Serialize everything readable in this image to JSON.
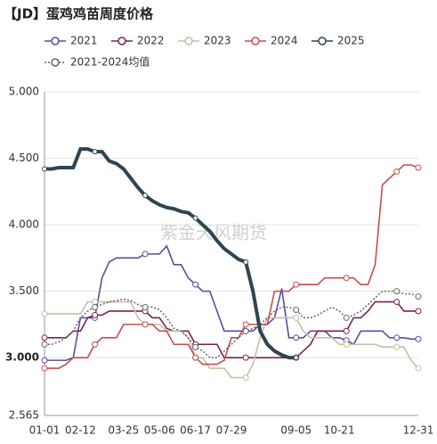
{
  "chart_data": {
    "type": "line",
    "title": "【JD】蛋鸡鸡苗周度价格",
    "watermark": "紫金天风期货",
    "categories": [
      "01-01",
      null,
      null,
      null,
      null,
      "02-12",
      null,
      null,
      null,
      null,
      null,
      "03-25",
      null,
      null,
      null,
      null,
      "05-06",
      null,
      null,
      null,
      null,
      "06-17",
      null,
      null,
      null,
      null,
      "07-29",
      null,
      null,
      null,
      null,
      null,
      null,
      null,
      null,
      "09-05",
      null,
      null,
      null,
      null,
      null,
      "10-21",
      null,
      null,
      null,
      null,
      null,
      null,
      null,
      null,
      null,
      null,
      "12-31"
    ],
    "ylim": [
      2.565,
      5.0
    ],
    "yticks": [
      2.565,
      {
        "value": 3,
        "label": "3.000"
      },
      {
        "value": 3.5,
        "label": "3.500"
      },
      {
        "value": 4,
        "label": "4.000"
      },
      {
        "value": 4.5,
        "label": "4.500"
      },
      {
        "value": 5,
        "label": "5.000"
      }
    ],
    "grid": true,
    "series": [
      {
        "name": "2021",
        "color": "#5a4e9e",
        "values": [
          2.98,
          2.98,
          2.98,
          2.98,
          3.0,
          3.3,
          3.3,
          3.3,
          3.6,
          3.72,
          3.75,
          3.75,
          3.75,
          3.75,
          3.78,
          3.78,
          3.78,
          3.84,
          3.7,
          3.7,
          3.6,
          3.55,
          3.5,
          3.5,
          3.35,
          3.2,
          3.2,
          3.2,
          3.2,
          3.2,
          3.25,
          3.25,
          3.3,
          3.52,
          3.15,
          3.15,
          3.15,
          3.2,
          3.2,
          3.2,
          3.15,
          3.15,
          3.13,
          3.1,
          3.2,
          3.2,
          3.2,
          3.2,
          3.15,
          3.15,
          3.15,
          3.14,
          3.14
        ]
      },
      {
        "name": "2022",
        "color": "#7b2150",
        "values": [
          3.15,
          3.15,
          3.15,
          3.15,
          3.2,
          3.2,
          3.3,
          3.32,
          3.32,
          3.35,
          3.35,
          3.35,
          3.35,
          3.35,
          3.35,
          3.3,
          3.3,
          3.22,
          3.2,
          3.2,
          3.2,
          3.1,
          3.1,
          3.1,
          3.1,
          3.0,
          3.0,
          3.0,
          3.0,
          3.0,
          3.0,
          3.0,
          3.0,
          3.0,
          3.0,
          3.0,
          3.05,
          3.1,
          3.2,
          3.2,
          3.2,
          3.2,
          3.2,
          3.3,
          3.3,
          3.35,
          3.42,
          3.42,
          3.42,
          3.42,
          3.35,
          3.35,
          3.35
        ]
      },
      {
        "name": "2023",
        "color": "#c7bfa6",
        "values": [
          3.33,
          3.33,
          3.33,
          3.33,
          3.33,
          3.33,
          3.42,
          3.42,
          3.42,
          3.42,
          3.42,
          3.42,
          3.42,
          3.3,
          3.25,
          3.25,
          3.25,
          3.2,
          3.2,
          3.2,
          3.15,
          3.0,
          3.0,
          2.92,
          2.92,
          2.92,
          2.85,
          2.85,
          2.85,
          2.95,
          3.15,
          3.3,
          3.3,
          3.3,
          3.3,
          3.3,
          3.2,
          3.15,
          3.15,
          3.15,
          3.15,
          3.1,
          3.1,
          3.1,
          3.1,
          3.1,
          3.1,
          3.08,
          3.08,
          3.08,
          3.08,
          2.98,
          2.92
        ]
      },
      {
        "name": "2024",
        "color": "#c0504d",
        "values": [
          2.92,
          2.92,
          2.92,
          2.95,
          3.0,
          3.0,
          3.0,
          3.1,
          3.15,
          3.15,
          3.15,
          3.25,
          3.25,
          3.25,
          3.25,
          3.25,
          3.2,
          3.2,
          3.1,
          3.1,
          3.1,
          3.0,
          2.95,
          2.95,
          2.95,
          2.98,
          3.15,
          3.15,
          3.25,
          3.25,
          3.25,
          3.25,
          3.5,
          3.5,
          3.5,
          3.55,
          3.55,
          3.55,
          3.55,
          3.6,
          3.6,
          3.6,
          3.6,
          3.6,
          3.55,
          3.55,
          3.7,
          4.3,
          4.35,
          4.4,
          4.45,
          4.45,
          4.43
        ]
      },
      {
        "name": "2025",
        "color": "#2e4452",
        "values": [
          4.42,
          4.42,
          4.43,
          4.43,
          4.43,
          4.57,
          4.57,
          4.55,
          4.55,
          4.48,
          4.46,
          4.42,
          4.35,
          4.28,
          4.22,
          4.18,
          4.15,
          4.13,
          4.12,
          4.1,
          4.09,
          4.05,
          4.0,
          3.95,
          3.88,
          3.82,
          3.78,
          3.74,
          3.72,
          3.5,
          3.2,
          3.1,
          3.05,
          3.02,
          3.0,
          3.0,
          null,
          null,
          null,
          null,
          null,
          null,
          null,
          null,
          null,
          null,
          null,
          null,
          null,
          null,
          null,
          null,
          null
        ]
      },
      {
        "name": "2021-2024均值",
        "color": "#666666",
        "dash": true,
        "values": [
          3.1,
          3.1,
          3.12,
          3.15,
          3.2,
          3.3,
          3.35,
          3.38,
          3.4,
          3.42,
          3.43,
          3.44,
          3.43,
          3.4,
          3.38,
          3.38,
          3.36,
          3.3,
          3.22,
          3.2,
          3.15,
          3.08,
          3.05,
          3.0,
          3.0,
          3.05,
          3.1,
          3.15,
          3.2,
          3.22,
          3.25,
          3.3,
          3.35,
          3.38,
          3.38,
          3.36,
          3.3,
          3.3,
          3.32,
          3.35,
          3.38,
          3.35,
          3.3,
          3.32,
          3.35,
          3.4,
          3.45,
          3.5,
          3.5,
          3.5,
          3.48,
          3.48,
          3.46
        ]
      }
    ]
  }
}
